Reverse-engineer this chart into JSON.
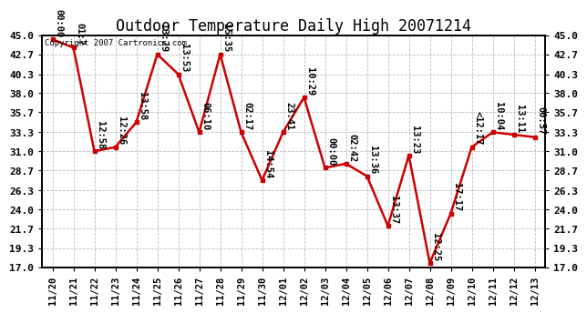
{
  "title": "Outdoor Temperature Daily High 20071214",
  "copyright": "Copyright 2007 Cartronics.com",
  "dates": [
    "11/20",
    "11/21",
    "11/22",
    "11/23",
    "11/24",
    "11/25",
    "11/26",
    "11/27",
    "11/28",
    "11/29",
    "11/30",
    "12/01",
    "12/02",
    "12/03",
    "12/04",
    "12/05",
    "12/06",
    "12/07",
    "12/08",
    "12/09",
    "12/10",
    "12/11",
    "12/12",
    "12/13"
  ],
  "values": [
    44.5,
    43.5,
    31.0,
    31.5,
    34.5,
    42.7,
    40.3,
    33.3,
    42.7,
    33.3,
    27.5,
    33.3,
    37.5,
    29.0,
    29.5,
    28.0,
    22.0,
    30.5,
    17.5,
    23.5,
    31.5,
    33.3,
    33.0,
    32.7
  ],
  "annotations": [
    "00:00",
    "01:?",
    "12:58",
    "12:26",
    "13:58",
    "13:29",
    "13:53",
    "06:10",
    "15:35",
    "02:17",
    "14:54",
    "23:41",
    "10:29",
    "00:00",
    "02:42",
    "13:36",
    "13:37",
    "13:23",
    "12:25",
    "17:17",
    "<12:17",
    "10:04",
    "13:11",
    "00:57"
  ],
  "ylim": [
    17.0,
    45.0
  ],
  "yticks": [
    17.0,
    19.3,
    21.7,
    24.0,
    26.3,
    28.7,
    31.0,
    33.3,
    35.7,
    38.0,
    40.3,
    42.7,
    45.0
  ],
  "line_color": "#cc0000",
  "marker_color": "#cc0000",
  "bg_color": "#ffffff",
  "grid_color": "#aaaaaa",
  "title_fontsize": 12,
  "annot_fontsize": 7.5
}
